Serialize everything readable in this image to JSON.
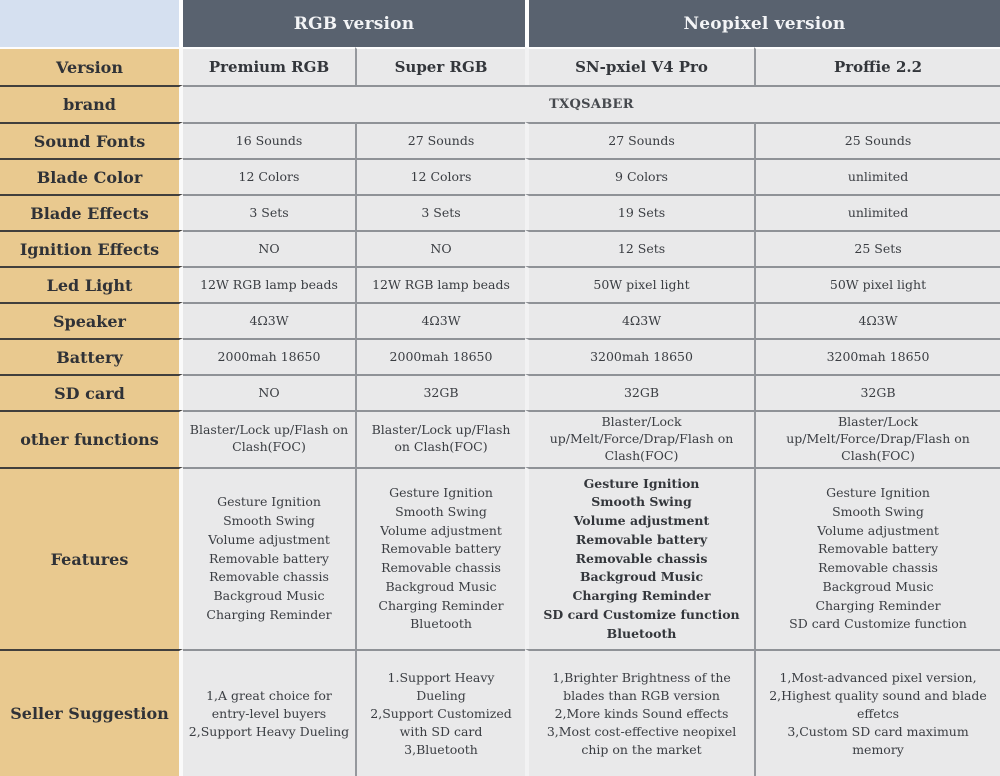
{
  "table": {
    "group_headers": {
      "rgb": "RGB version",
      "neopixel": "Neopixel version"
    },
    "version_row": {
      "label": "Version",
      "values": [
        "Premium RGB",
        "Super RGB",
        "SN-pxiel V4 Pro",
        "Proffie 2.2"
      ]
    },
    "brand_row": {
      "label": "brand",
      "value": "TXQSABER"
    },
    "spec_rows": [
      {
        "label": "Sound Fonts",
        "values": [
          "16 Sounds",
          "27 Sounds",
          "27 Sounds",
          "25 Sounds"
        ]
      },
      {
        "label": "Blade Color",
        "values": [
          "12 Colors",
          "12 Colors",
          "9 Colors",
          "unlimited"
        ]
      },
      {
        "label": "Blade Effects",
        "values": [
          "3 Sets",
          "3 Sets",
          "19 Sets",
          "unlimited"
        ]
      },
      {
        "label": "Ignition Effects",
        "values": [
          "NO",
          "NO",
          "12 Sets",
          "25 Sets"
        ]
      },
      {
        "label": "Led Light",
        "values": [
          "12W RGB lamp beads",
          "12W RGB lamp beads",
          "50W pixel light",
          "50W pixel light"
        ]
      },
      {
        "label": "Speaker",
        "values": [
          "4Ω3W",
          "4Ω3W",
          "4Ω3W",
          "4Ω3W"
        ]
      },
      {
        "label": "Battery",
        "values": [
          "2000mah 18650",
          "2000mah 18650",
          "3200mah 18650",
          "3200mah 18650"
        ]
      },
      {
        "label": "SD card",
        "values": [
          "NO",
          "32GB",
          "32GB",
          "32GB"
        ]
      },
      {
        "label": "other functions",
        "values": [
          "Blaster/Lock up/Flash on Clash(FOC)",
          "Blaster/Lock up/Flash on Clash(FOC)",
          "Blaster/Lock up/Melt/Force/Drap/Flash on Clash(FOC)",
          "Blaster/Lock up/Melt/Force/Drap/Flash on Clash(FOC)"
        ]
      }
    ],
    "features_row": {
      "label": "Features",
      "lists": [
        [
          "Gesture Ignition",
          "Smooth Swing",
          "Volume adjustment",
          "Removable battery",
          "Removable chassis",
          "Backgroud Music",
          "Charging Reminder"
        ],
        [
          "Gesture Ignition",
          "Smooth Swing",
          "Volume adjustment",
          "Removable battery",
          "Removable chassis",
          "Backgroud Music",
          "Charging Reminder",
          "Bluetooth"
        ],
        [
          "Gesture Ignition",
          "Smooth Swing",
          "Volume adjustment",
          "Removable battery",
          "Removable chassis",
          "Backgroud Music",
          "Charging Reminder",
          "SD card Customize function",
          "Bluetooth"
        ],
        [
          "Gesture Ignition",
          "Smooth Swing",
          "Volume adjustment",
          "Removable battery",
          "Removable chassis",
          "Backgroud Music",
          "Charging Reminder",
          "SD card Customize function"
        ]
      ]
    },
    "suggestion_row": {
      "label": "Seller Suggestion",
      "lists": [
        [
          "1,A great choice for entry-level buyers",
          "2,Support Heavy Dueling"
        ],
        [
          "1.Support Heavy Dueling",
          "2,Support Customized with SD card",
          "3,Bluetooth"
        ],
        [
          "1,Brighter Brightness of the blades than RGB version",
          "2,More kinds Sound effects",
          "3,Most cost-effective neopixel chip on the market"
        ],
        [
          "1,Most-advanced pixel version,",
          "2,Highest quality sound and blade effetcs",
          "3,Custom SD card maximum memory"
        ]
      ]
    }
  },
  "colors": {
    "group_header_bg": "#59626f",
    "label_bg": "#e9c98f",
    "corner_bg": "#d5e0f0",
    "cell_bg": "#e9e9ea",
    "label_text": "#303237",
    "value_text": "#3a3d42",
    "header_text": "#f3f4f6"
  }
}
